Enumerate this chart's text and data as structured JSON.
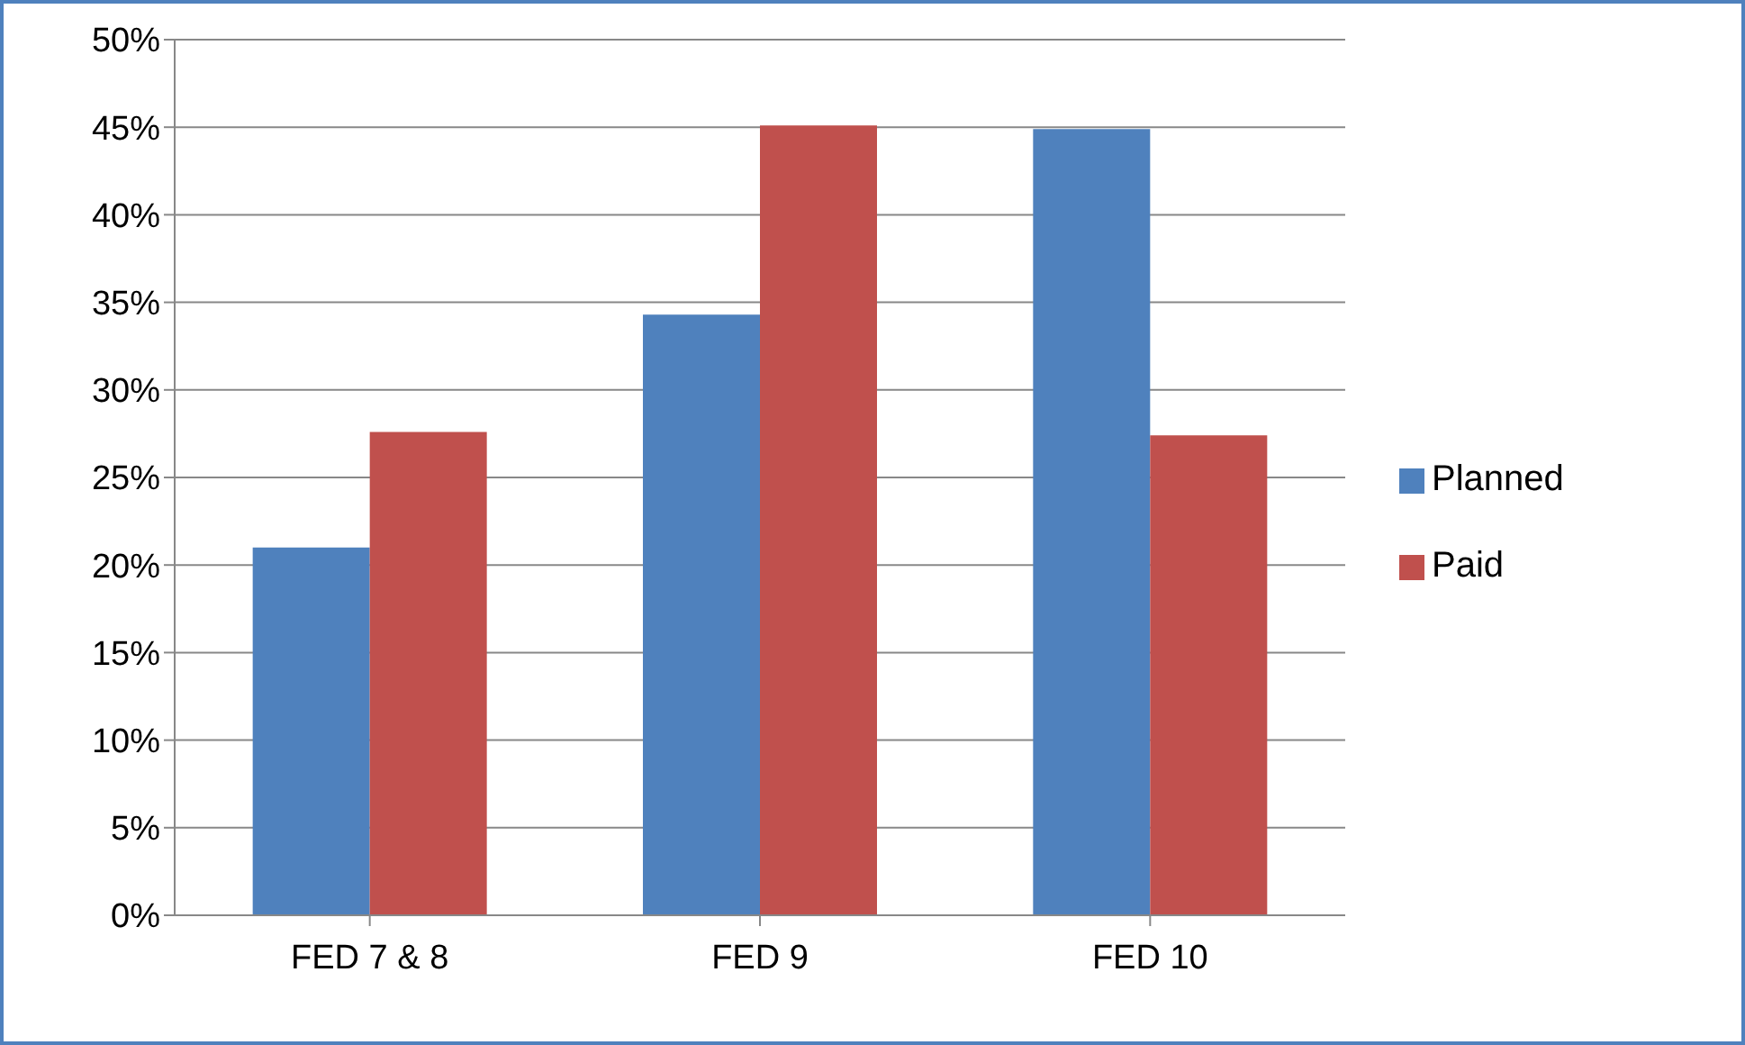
{
  "chart_data": {
    "type": "bar",
    "categories": [
      "FED 7 & 8",
      "FED 9",
      "FED 10"
    ],
    "series": [
      {
        "name": "Planned",
        "color": "#4f81bd",
        "values": [
          21,
          34.3,
          44.9
        ]
      },
      {
        "name": "Paid",
        "color": "#c0504d",
        "values": [
          27.6,
          45.1,
          27.4
        ]
      }
    ],
    "ylim": [
      0,
      50
    ],
    "yticks": [
      {
        "value": 0,
        "label": "0%"
      },
      {
        "value": 5,
        "label": "5%"
      },
      {
        "value": 10,
        "label": "10%"
      },
      {
        "value": 15,
        "label": "15%"
      },
      {
        "value": 20,
        "label": "20%"
      },
      {
        "value": 25,
        "label": "25%"
      },
      {
        "value": 30,
        "label": "30%"
      },
      {
        "value": 35,
        "label": "35%"
      },
      {
        "value": 40,
        "label": "40%"
      },
      {
        "value": 45,
        "label": "45%"
      },
      {
        "value": 50,
        "label": "50%"
      }
    ],
    "grid": "y",
    "legend": "right"
  }
}
